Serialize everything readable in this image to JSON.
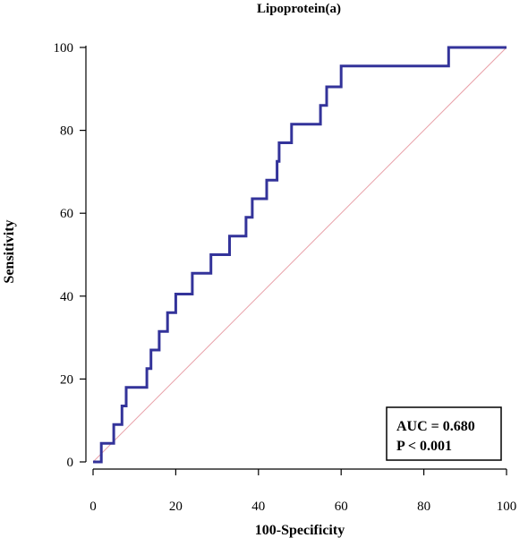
{
  "chart_data": {
    "type": "line",
    "title": "Lipoprotein(a)",
    "xlabel": "100-Specificity",
    "ylabel": "Sensitivity",
    "xlim": [
      0,
      100
    ],
    "ylim": [
      0,
      100
    ],
    "xticks": [
      0,
      20,
      40,
      60,
      80,
      100
    ],
    "yticks": [
      0,
      20,
      40,
      60,
      80,
      100
    ],
    "grid": false,
    "series": [
      {
        "role": "roc-curve",
        "color": "#33339a",
        "points": [
          [
            0,
            0
          ],
          [
            2,
            0
          ],
          [
            2,
            4.5
          ],
          [
            5,
            4.5
          ],
          [
            5,
            9
          ],
          [
            7,
            9
          ],
          [
            7,
            13.5
          ],
          [
            8,
            13.5
          ],
          [
            8,
            18
          ],
          [
            13,
            18
          ],
          [
            13,
            22.5
          ],
          [
            14,
            22.5
          ],
          [
            14,
            27
          ],
          [
            16,
            27
          ],
          [
            16,
            31.5
          ],
          [
            18,
            31.5
          ],
          [
            18,
            36
          ],
          [
            20,
            36
          ],
          [
            20,
            40.5
          ],
          [
            24,
            40.5
          ],
          [
            24,
            45.5
          ],
          [
            28.5,
            45.5
          ],
          [
            28.5,
            50
          ],
          [
            33,
            50
          ],
          [
            33,
            54.5
          ],
          [
            37,
            54.5
          ],
          [
            37,
            59
          ],
          [
            38.5,
            59
          ],
          [
            38.5,
            63.5
          ],
          [
            42,
            63.5
          ],
          [
            42,
            68
          ],
          [
            44.5,
            68
          ],
          [
            44.5,
            72.5
          ],
          [
            45,
            72.5
          ],
          [
            45,
            77
          ],
          [
            48,
            77
          ],
          [
            48,
            81.5
          ],
          [
            55,
            81.5
          ],
          [
            55,
            86
          ],
          [
            56.5,
            86
          ],
          [
            56.5,
            90.5
          ],
          [
            60,
            90.5
          ],
          [
            60,
            95.5
          ],
          [
            86,
            95.5
          ],
          [
            86,
            100
          ],
          [
            100,
            100
          ]
        ]
      },
      {
        "role": "reference-diagonal",
        "color": "#e8a0a8",
        "points": [
          [
            0,
            0
          ],
          [
            100,
            100
          ]
        ]
      }
    ],
    "annotation": {
      "lines": [
        "AUC = 0.680",
        "P < 0.001"
      ],
      "placement": "bottom-right"
    }
  }
}
